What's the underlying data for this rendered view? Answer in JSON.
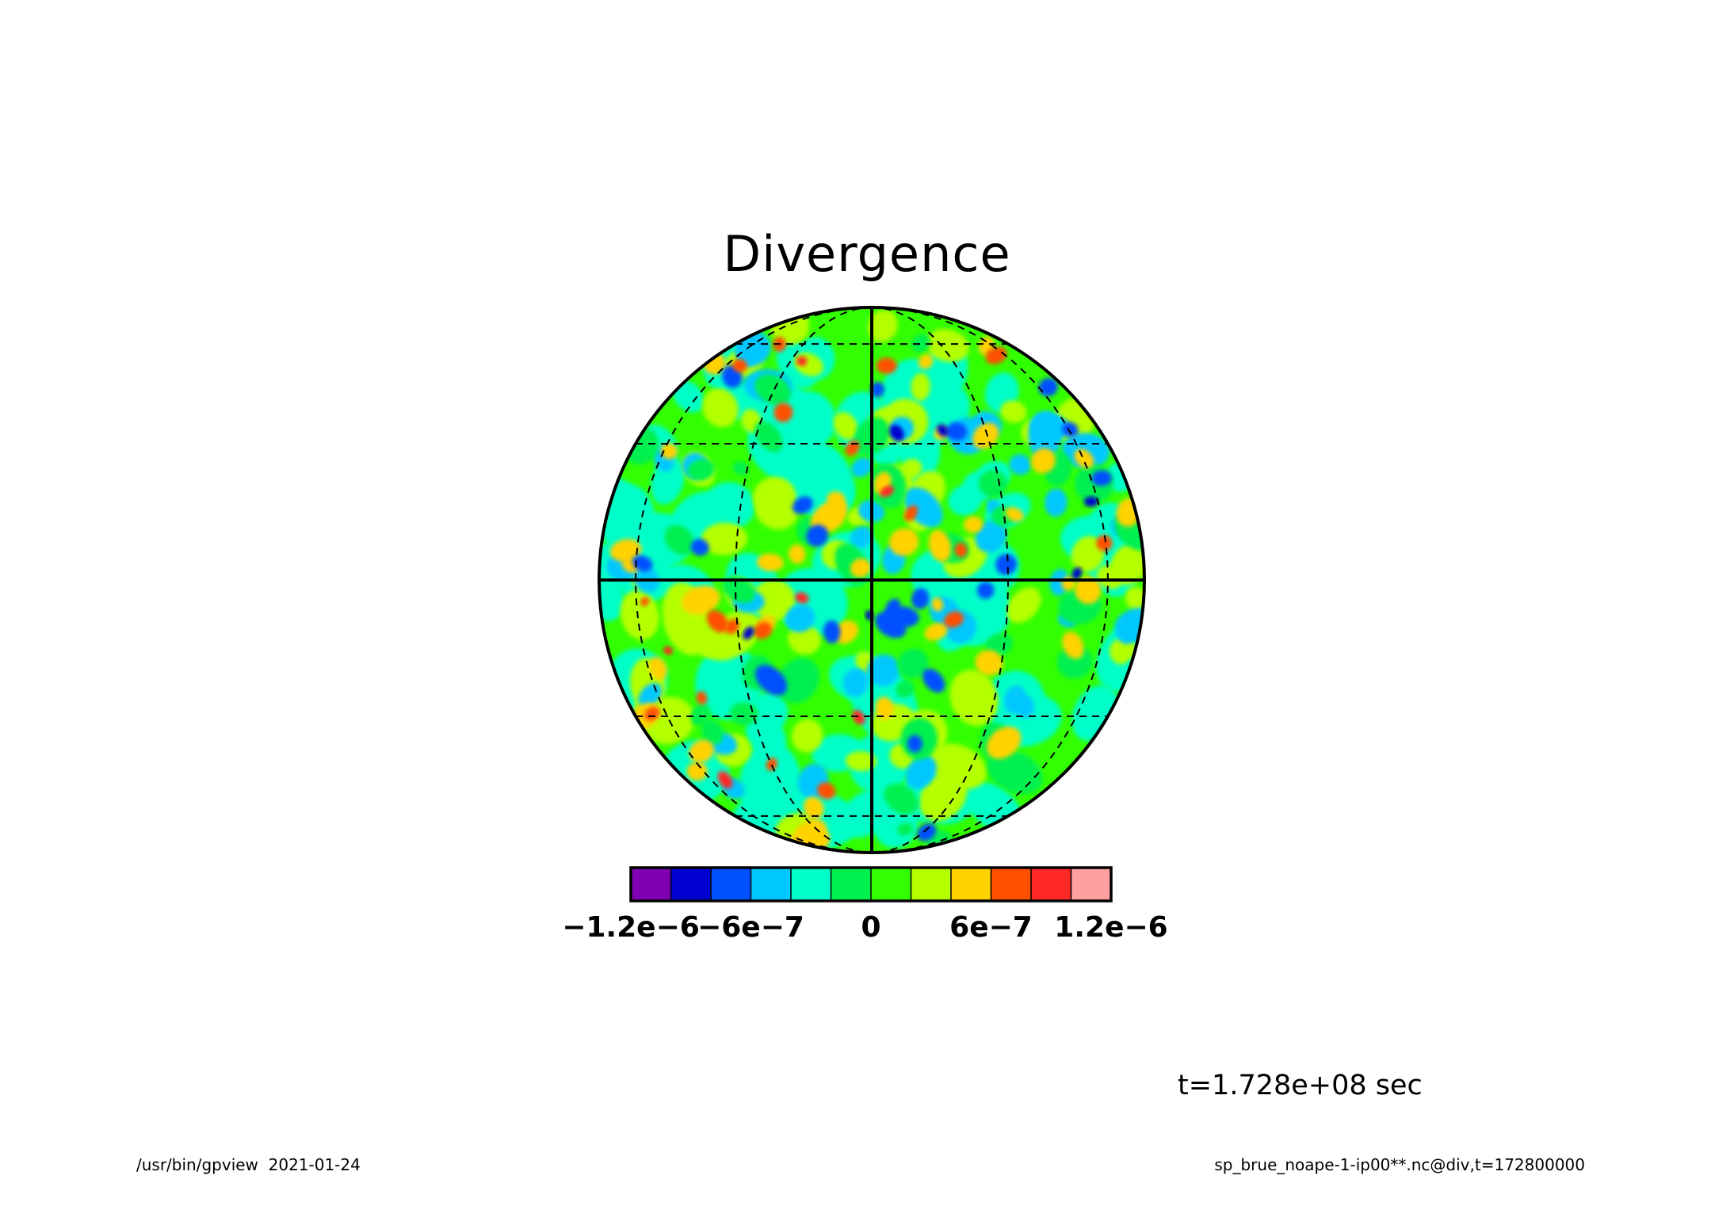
{
  "title": "Divergence",
  "colorbar": {
    "colors": [
      "#7f00b2",
      "#0000d0",
      "#0050ff",
      "#00c8ff",
      "#00ffc8",
      "#00f050",
      "#32ff00",
      "#b4ff00",
      "#ffd200",
      "#ff5000",
      "#ff2828",
      "#ffa0a0"
    ],
    "tick_labels": [
      "−1.2e−6",
      "−6e−7",
      "0",
      "6e−7",
      "1.2e−6"
    ],
    "tick_values": [
      -1.2e-06,
      -6e-07,
      0,
      6e-07,
      1.2e-06
    ],
    "range": [
      -1.2e-06,
      1.2e-06
    ]
  },
  "map": {
    "projection": "orthographic",
    "variable": "div",
    "graticule_style": "dashed",
    "background_color": "#32ff00"
  },
  "time_label": "t=1.728e+08 sec",
  "footer": {
    "left": "/usr/bin/gpview  2021-01-24",
    "right": "sp_brue_noape-1-ip00**.nc@div,t=172800000"
  }
}
